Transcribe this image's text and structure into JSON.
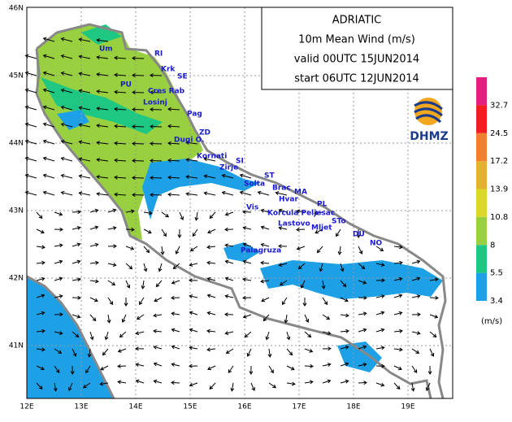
{
  "map": {
    "title_lines": [
      "ADRIATIC",
      "10m  Mean Wind  (m/s)",
      "valid 00UTC 15JUN2014",
      "start 06UTC 12JUN2014"
    ],
    "lat_labels": [
      "46N",
      "45N",
      "44N",
      "43N",
      "42N",
      "41N"
    ],
    "lon_labels": [
      "12E",
      "13E",
      "14E",
      "15E",
      "16E",
      "17E",
      "18E",
      "19E"
    ],
    "places": [
      "Um",
      "RI",
      "Krk",
      "SE",
      "PU",
      "Cres Rab",
      "Losinj",
      "Pag",
      "ZD",
      "Dugi O.",
      "Kornati",
      "SI",
      "Zirje",
      "ST",
      "Solta",
      "Brac",
      "MA",
      "Hvar",
      "PL",
      "Vis",
      "Korcula Peljesac",
      "Lastovo",
      "Mljet",
      "STo",
      "DU",
      "NO",
      "Palagruza"
    ],
    "logo": "DHMZ",
    "colorbar": {
      "ticks": [
        3.4,
        5.5,
        8,
        10.8,
        13.9,
        17.2,
        24.5,
        32.7
      ],
      "unit": "(m/s)",
      "colors": [
        "#1ea0e6",
        "#1ec882",
        "#98d040",
        "#dcd828",
        "#e6b030",
        "#f08030",
        "#f01e1e",
        "#e61e7f"
      ]
    }
  }
}
